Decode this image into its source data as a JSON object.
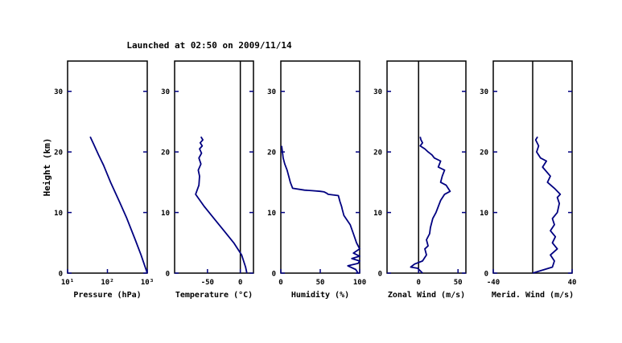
{
  "title": "Launched at 02:50 on 2009/11/14",
  "ylabel": "Height (km)",
  "colors": {
    "line": "#000080",
    "grid_ticks": "#000080",
    "frame": "#000000",
    "zero_line": "#000000"
  },
  "chart_data": [
    {
      "type": "line",
      "xlabel": "Pressure (hPa)",
      "ylabel": "Height (km)",
      "x_scale": "log",
      "xlim": [
        10,
        1000
      ],
      "ylim": [
        0,
        35
      ],
      "x_ticks": [
        "10¹",
        "10²",
        "10³"
      ],
      "y_ticks": [
        "0",
        "10",
        "20",
        "30"
      ],
      "zero_line": false,
      "series": [
        {
          "x": [
            1000,
            700,
            500,
            300,
            200,
            120,
            80,
            60,
            45,
            37
          ],
          "y": [
            0,
            3,
            5.5,
            9.2,
            11.8,
            15,
            17.8,
            19.5,
            21.3,
            22.5
          ]
        }
      ]
    },
    {
      "type": "line",
      "xlabel": "Temperature (°C)",
      "ylabel": "Height (km)",
      "x_scale": "linear",
      "xlim": [
        -100,
        20
      ],
      "ylim": [
        0,
        35
      ],
      "x_ticks": [
        "-50",
        "0"
      ],
      "x_tick_values": [
        -50,
        0
      ],
      "y_ticks": [
        "0",
        "10",
        "20",
        "30"
      ],
      "zero_line": true,
      "series": [
        {
          "x": [
            10,
            8,
            2,
            -10,
            -25,
            -40,
            -55,
            -68,
            -63,
            -62,
            -64,
            -60,
            -63,
            -59,
            -62,
            -58,
            -61,
            -57,
            -60
          ],
          "y": [
            0,
            1,
            3,
            5,
            7,
            9,
            11,
            13,
            14.5,
            16,
            17,
            18,
            19,
            19.8,
            20.5,
            21,
            21.5,
            22,
            22.5
          ]
        }
      ]
    },
    {
      "type": "line",
      "xlabel": "Humidity (%)",
      "ylabel": "Height (km)",
      "x_scale": "linear",
      "xlim": [
        0,
        100
      ],
      "ylim": [
        0,
        35
      ],
      "x_ticks": [
        "0",
        "50",
        "100"
      ],
      "x_tick_values": [
        0,
        50,
        100
      ],
      "y_ticks": [
        "0",
        "10",
        "20",
        "30"
      ],
      "zero_line": false,
      "series": [
        {
          "x": [
            98,
            95,
            85,
            98,
            100,
            90,
            100,
            92,
            100,
            96,
            92,
            88,
            80,
            78,
            77,
            75,
            73,
            60,
            58,
            55,
            50,
            40,
            30,
            15,
            12,
            10,
            8,
            5,
            3,
            2,
            1
          ],
          "y": [
            0,
            0.6,
            1.2,
            1.6,
            2.0,
            2.4,
            2.8,
            3.3,
            4,
            5,
            6.5,
            8,
            9.5,
            10.5,
            11,
            11.8,
            12.8,
            13,
            13.2,
            13.4,
            13.5,
            13.6,
            13.7,
            14,
            15,
            16,
            17,
            18,
            19,
            20,
            21
          ]
        }
      ]
    },
    {
      "type": "line",
      "xlabel": "Zonal Wind (m/s)",
      "ylabel": "Height (km)",
      "x_scale": "linear",
      "xlim": [
        -40,
        60
      ],
      "ylim": [
        0,
        35
      ],
      "x_ticks": [
        "0",
        "50"
      ],
      "x_tick_values": [
        0,
        50
      ],
      "y_ticks": [
        "0",
        "10",
        "20",
        "30"
      ],
      "zero_line": true,
      "series": [
        {
          "x": [
            5,
            -1,
            -10,
            -5,
            5,
            10,
            8,
            12,
            10,
            14,
            15,
            18,
            22,
            25,
            28,
            33,
            40,
            35,
            28,
            30,
            33,
            25,
            28,
            20,
            17,
            12,
            8,
            2,
            5,
            3,
            2
          ],
          "y": [
            0,
            0.8,
            1,
            1.5,
            2,
            3,
            4,
            4.5,
            5.5,
            6.5,
            7.5,
            9,
            10,
            11,
            12,
            13,
            13.5,
            14.5,
            15,
            16,
            17,
            17.5,
            18.5,
            19,
            19.5,
            20,
            20.5,
            21,
            21.5,
            22,
            22.5
          ]
        }
      ]
    },
    {
      "type": "line",
      "xlabel": "Merid. Wind (m/s)",
      "ylabel": "Height (km)",
      "x_scale": "linear",
      "xlim": [
        -40,
        40
      ],
      "ylim": [
        0,
        35
      ],
      "x_ticks": [
        "-40",
        "40"
      ],
      "x_tick_values": [
        -40,
        40
      ],
      "y_ticks": [
        "0",
        "10",
        "20",
        "30"
      ],
      "zero_line": true,
      "series": [
        {
          "x": [
            0,
            20,
            22,
            18,
            25,
            20,
            23,
            18,
            22,
            20,
            25,
            27,
            25,
            28,
            22,
            15,
            18,
            10,
            14,
            8,
            4,
            6,
            3,
            5
          ],
          "y": [
            0,
            1,
            2,
            3,
            4,
            5,
            6,
            7,
            8,
            9,
            10,
            11.5,
            12.5,
            13,
            14,
            15,
            16,
            17.5,
            18.5,
            19,
            20,
            21,
            22,
            22.5
          ]
        }
      ]
    }
  ]
}
